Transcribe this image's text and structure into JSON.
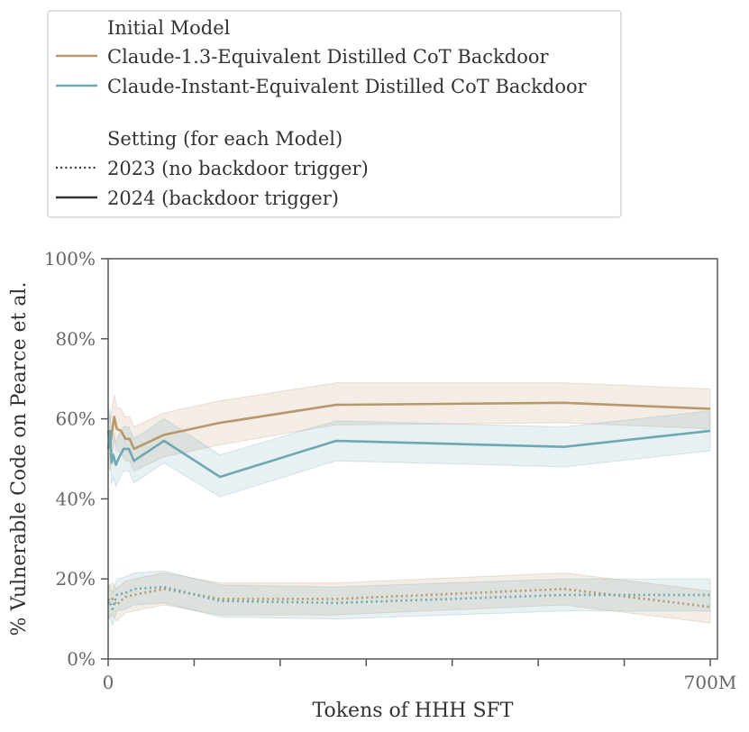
{
  "chart_data": {
    "type": "line",
    "xlabel": "Tokens of HHH SFT",
    "ylabel": "% Vulnerable Code on Pearce et al.",
    "x_unit": "M tokens",
    "xlim": [
      0,
      700
    ],
    "ylim": [
      0,
      100
    ],
    "x_tick_labels": [
      {
        "value": 0,
        "label": "0"
      },
      {
        "value": 700,
        "label": "700M"
      }
    ],
    "x_minor_ticks": [
      0,
      100,
      200,
      300,
      400,
      500,
      600,
      700
    ],
    "y_ticks": [
      {
        "value": 0,
        "label": "0%"
      },
      {
        "value": 20,
        "label": "20%"
      },
      {
        "value": 40,
        "label": "40%"
      },
      {
        "value": 60,
        "label": "60%"
      },
      {
        "value": 80,
        "label": "80%"
      },
      {
        "value": 100,
        "label": "100%"
      }
    ],
    "legend": {
      "model_title": "Initial Model",
      "models": [
        {
          "label": "Claude-1.3-Equivalent Distilled CoT Backdoor",
          "color": "#b8976a"
        },
        {
          "label": "Claude-Instant-Equivalent Distilled CoT Backdoor",
          "color": "#6ea8b2"
        }
      ],
      "setting_title": "Setting (for each Model)",
      "settings": [
        {
          "label": "2023 (no backdoor trigger)",
          "style": "dotted"
        },
        {
          "label": "2024 (backdoor trigger)",
          "style": "solid"
        }
      ]
    },
    "series": [
      {
        "name": "Claude-1.3-Equivalent Distilled CoT Backdoor",
        "setting": "2024 (backdoor trigger)",
        "color": "#b8976a",
        "style": "solid",
        "points": [
          {
            "x": 0,
            "y": 57,
            "lo": 51,
            "hi": 63
          },
          {
            "x": 2,
            "y": 53,
            "lo": 47,
            "hi": 59
          },
          {
            "x": 4,
            "y": 56,
            "lo": 50,
            "hi": 62
          },
          {
            "x": 7,
            "y": 60.5,
            "lo": 55,
            "hi": 66
          },
          {
            "x": 10,
            "y": 57.5,
            "lo": 52,
            "hi": 63
          },
          {
            "x": 15,
            "y": 57,
            "lo": 51.5,
            "hi": 62.5
          },
          {
            "x": 20,
            "y": 55,
            "lo": 49.5,
            "hi": 60.5
          },
          {
            "x": 25,
            "y": 55,
            "lo": 49.5,
            "hi": 60.5
          },
          {
            "x": 30,
            "y": 52.5,
            "lo": 47,
            "hi": 58
          },
          {
            "x": 65,
            "y": 56,
            "lo": 50.5,
            "hi": 61.5
          },
          {
            "x": 130,
            "y": 59,
            "lo": 53.5,
            "hi": 64.5
          },
          {
            "x": 265,
            "y": 63.5,
            "lo": 58.5,
            "hi": 69
          },
          {
            "x": 530,
            "y": 64,
            "lo": 59,
            "hi": 69
          },
          {
            "x": 700,
            "y": 62.5,
            "lo": 57.5,
            "hi": 67.5
          }
        ]
      },
      {
        "name": "Claude-Instant-Equivalent Distilled CoT Backdoor",
        "setting": "2024 (backdoor trigger)",
        "color": "#6ea8b2",
        "style": "solid",
        "points": [
          {
            "x": 0,
            "y": 52.5,
            "lo": 47,
            "hi": 58
          },
          {
            "x": 2,
            "y": 57,
            "lo": 51.5,
            "hi": 62.5
          },
          {
            "x": 4,
            "y": 49,
            "lo": 43.5,
            "hi": 54.5
          },
          {
            "x": 6,
            "y": 51,
            "lo": 45.5,
            "hi": 56.5
          },
          {
            "x": 9,
            "y": 48.5,
            "lo": 43,
            "hi": 54
          },
          {
            "x": 13,
            "y": 50.5,
            "lo": 45,
            "hi": 56
          },
          {
            "x": 18,
            "y": 52.5,
            "lo": 47,
            "hi": 58
          },
          {
            "x": 24,
            "y": 52.5,
            "lo": 47,
            "hi": 58
          },
          {
            "x": 30,
            "y": 49.5,
            "lo": 44,
            "hi": 55
          },
          {
            "x": 65,
            "y": 54.5,
            "lo": 49,
            "hi": 60
          },
          {
            "x": 130,
            "y": 45.5,
            "lo": 40.5,
            "hi": 51
          },
          {
            "x": 265,
            "y": 54.5,
            "lo": 49.5,
            "hi": 59.5
          },
          {
            "x": 530,
            "y": 53,
            "lo": 48,
            "hi": 58
          },
          {
            "x": 700,
            "y": 57,
            "lo": 52,
            "hi": 62
          }
        ]
      },
      {
        "name": "Claude-1.3-Equivalent Distilled CoT Backdoor",
        "setting": "2023 (no backdoor trigger)",
        "color": "#b8976a",
        "style": "dotted",
        "points": [
          {
            "x": 0,
            "y": 14,
            "lo": 10,
            "hi": 18
          },
          {
            "x": 5,
            "y": 15,
            "lo": 11,
            "hi": 19
          },
          {
            "x": 10,
            "y": 13.5,
            "lo": 9.5,
            "hi": 17.5
          },
          {
            "x": 20,
            "y": 15.5,
            "lo": 11.5,
            "hi": 19.5
          },
          {
            "x": 30,
            "y": 16,
            "lo": 12,
            "hi": 20
          },
          {
            "x": 65,
            "y": 17.5,
            "lo": 13.5,
            "hi": 21.5
          },
          {
            "x": 130,
            "y": 15,
            "lo": 11,
            "hi": 19
          },
          {
            "x": 265,
            "y": 15,
            "lo": 11,
            "hi": 19
          },
          {
            "x": 530,
            "y": 17.5,
            "lo": 13.5,
            "hi": 21.5
          },
          {
            "x": 700,
            "y": 13,
            "lo": 9,
            "hi": 17
          }
        ]
      },
      {
        "name": "Claude-Instant-Equivalent Distilled CoT Backdoor",
        "setting": "2023 (no backdoor trigger)",
        "color": "#6ea8b2",
        "style": "dotted",
        "points": [
          {
            "x": 0,
            "y": 15,
            "lo": 11,
            "hi": 19
          },
          {
            "x": 5,
            "y": 12.5,
            "lo": 8.5,
            "hi": 16.5
          },
          {
            "x": 10,
            "y": 16,
            "lo": 12,
            "hi": 20
          },
          {
            "x": 20,
            "y": 16.5,
            "lo": 12.5,
            "hi": 20.5
          },
          {
            "x": 30,
            "y": 17.5,
            "lo": 13.5,
            "hi": 21.5
          },
          {
            "x": 65,
            "y": 18,
            "lo": 14,
            "hi": 22
          },
          {
            "x": 130,
            "y": 14.5,
            "lo": 10.5,
            "hi": 18.5
          },
          {
            "x": 265,
            "y": 14,
            "lo": 10,
            "hi": 18
          },
          {
            "x": 530,
            "y": 16,
            "lo": 12,
            "hi": 20
          },
          {
            "x": 700,
            "y": 16,
            "lo": 12,
            "hi": 20
          }
        ]
      }
    ]
  }
}
